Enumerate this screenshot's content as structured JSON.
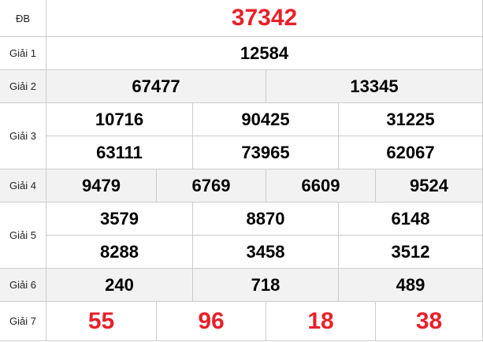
{
  "colors": {
    "highlight": "#e8202a",
    "alt_row": "#f2f2f2",
    "border": "#cccccc"
  },
  "rows": [
    {
      "label": "ĐB",
      "numbers": [
        "37342"
      ]
    },
    {
      "label": "Giải 1",
      "numbers": [
        "12584"
      ]
    },
    {
      "label": "Giải 2",
      "numbers": [
        "67477",
        "13345"
      ]
    },
    {
      "label": "Giải 3",
      "numbers": [
        "10716",
        "90425",
        "31225",
        "63111",
        "73965",
        "62067"
      ]
    },
    {
      "label": "Giải 4",
      "numbers": [
        "9479",
        "6769",
        "6609",
        "9524"
      ]
    },
    {
      "label": "Giải 5",
      "numbers": [
        "3579",
        "8870",
        "6148",
        "8288",
        "3458",
        "3512"
      ]
    },
    {
      "label": "Giải 6",
      "numbers": [
        "240",
        "718",
        "489"
      ]
    },
    {
      "label": "Giải 7",
      "numbers": [
        "55",
        "96",
        "18",
        "38"
      ]
    }
  ]
}
